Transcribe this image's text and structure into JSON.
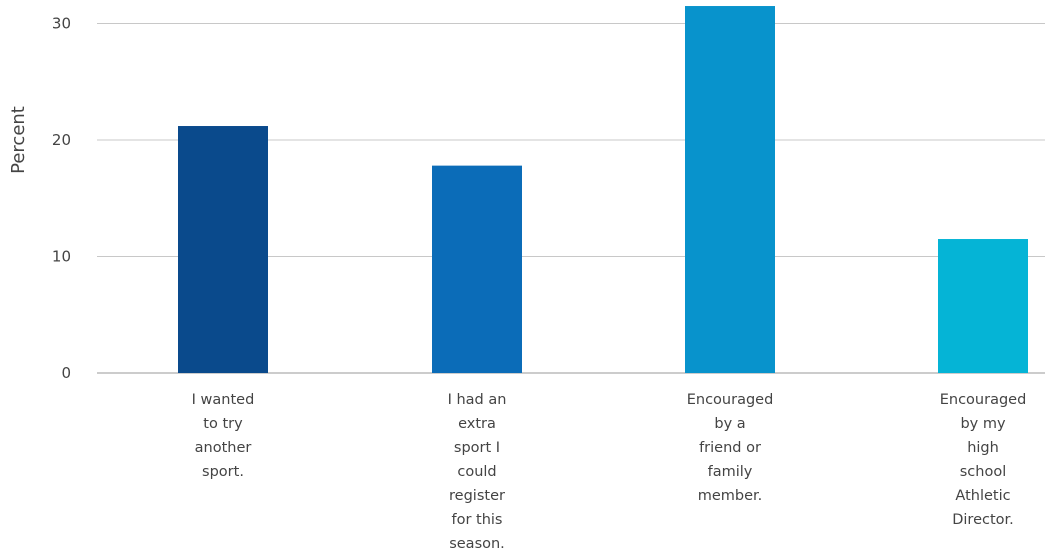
{
  "chart_data": {
    "type": "bar",
    "ylabel": "Percent",
    "xlabel": "",
    "title": "",
    "ylim": [
      0,
      31.5
    ],
    "yticks": [
      0,
      10,
      20,
      30
    ],
    "grid": true,
    "categories": [
      [
        "I wanted",
        "to try",
        "another",
        "sport."
      ],
      [
        "I had an",
        "extra",
        "sport I",
        "could",
        "register",
        "for this",
        "season."
      ],
      [
        "Encouraged",
        "by a",
        "friend or",
        "family",
        "member."
      ],
      [
        "Encouraged",
        "by my",
        "high",
        "school",
        "Athletic",
        "Director."
      ]
    ],
    "values": [
      21.2,
      17.8,
      31.5,
      11.5
    ],
    "colors": [
      "#0a4a8c",
      "#0b6cb8",
      "#0893cc",
      "#05b4d6"
    ]
  }
}
